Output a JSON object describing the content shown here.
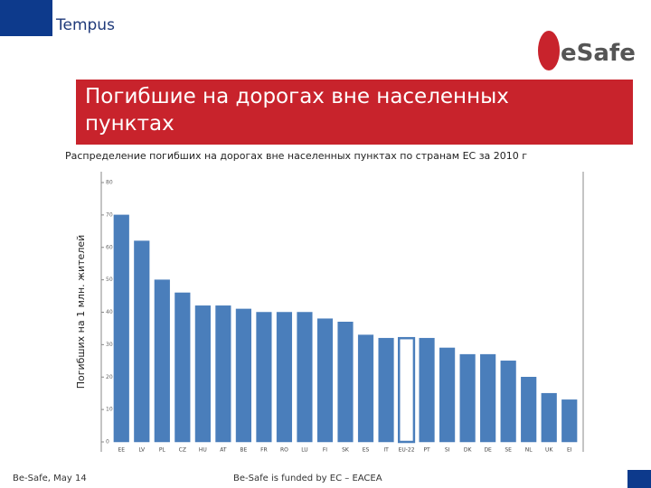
{
  "header": {
    "logo_left": "Tempus",
    "logo_right": "eSafe"
  },
  "chart_data": {
    "type": "bar",
    "title": "Погибшие на дорогах вне населенных пунктах",
    "subtitle": "Распределение погибших на дорогах вне населенных пунктах по странам ЕС за 2010 г",
    "y_label": "Погибших на 1 млн. жителей",
    "categories": [
      "EE",
      "LV",
      "PL",
      "CZ",
      "HU",
      "AT",
      "BE",
      "FR",
      "RO",
      "LU",
      "FI",
      "SK",
      "ES",
      "IT",
      "EU-22",
      "PT",
      "SI",
      "DK",
      "DE",
      "SE",
      "NL",
      "UK",
      "EI"
    ],
    "values": [
      70,
      62,
      50,
      46,
      42,
      42,
      41,
      40,
      40,
      40,
      38,
      37,
      33,
      32,
      32,
      32,
      29,
      27,
      27,
      25,
      20,
      15,
      13
    ],
    "color": "#4a7ebb",
    "outlined_index": 14,
    "ylim": [
      0,
      80
    ],
    "yticks": [
      0,
      10,
      20,
      30,
      40,
      50,
      60,
      70,
      80
    ],
    "grid": false
  },
  "footer": {
    "left": "Be-Safe, May 14",
    "center": "Be-Safe is funded by EC – EACEA"
  }
}
